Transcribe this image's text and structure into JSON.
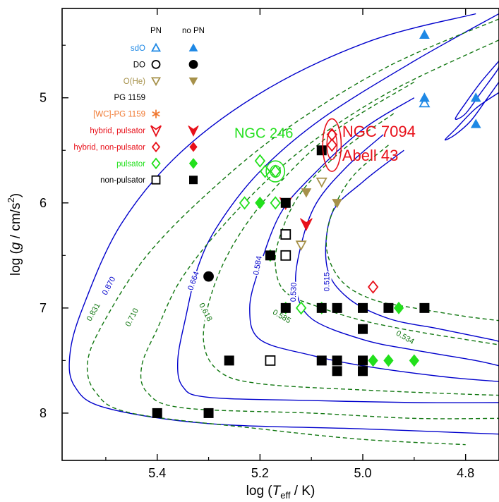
{
  "chart_data": {
    "type": "scatter",
    "xlabel": {
      "pre": "log (",
      "italic": "T",
      "sub": "eff",
      "post": " / K)"
    },
    "ylabel": {
      "pre": "log (",
      "italic": "g",
      "post": " / cm/s",
      "sup": "2",
      "end": ")"
    },
    "xlim": [
      5.585,
      4.735
    ],
    "ylim": [
      4.15,
      8.45
    ],
    "x_axis_reversed": true,
    "y_axis_reversed": true,
    "xticks": [
      5.4,
      5.2,
      5.0,
      4.8
    ],
    "xtick_labels": [
      "5.4",
      "5.2",
      "5.0",
      "4.8"
    ],
    "yticks": [
      5,
      6,
      7,
      8
    ],
    "ytick_labels": [
      "5",
      "6",
      "7",
      "8"
    ],
    "grid": false,
    "legend_placement": "top-left",
    "legend": {
      "col_headers": [
        "PN",
        "no PN"
      ],
      "rows": [
        {
          "label": "sdO",
          "color": "#1e88e5",
          "marker": "triangle-up"
        },
        {
          "label": "DO",
          "color": "#000000",
          "marker": "circle"
        },
        {
          "label": "O(He)",
          "color": "#a6914a",
          "marker": "triangle-down"
        },
        {
          "label": "PG 1159",
          "color": "#000000",
          "marker": "none"
        },
        {
          "label": "[WC]-PG 1159",
          "color": "#f07830",
          "marker": "asterisk"
        },
        {
          "label": "hybrid,        pulsator",
          "color": "#e8101a",
          "marker": "arrow"
        },
        {
          "label": "hybrid, non-pulsator",
          "color": "#e8101a",
          "marker": "diamond"
        },
        {
          "label": "pulsator",
          "color": "#22e01c",
          "marker": "diamond"
        },
        {
          "label": "non-pulsator",
          "color": "#000000",
          "marker": "square"
        }
      ]
    },
    "tracks_solid": [
      {
        "label": "0.870",
        "color": "#0000cc",
        "points": [
          [
            4.78,
            4.2
          ],
          [
            4.98,
            4.45
          ],
          [
            5.18,
            4.9
          ],
          [
            5.35,
            5.5
          ],
          [
            5.47,
            6.2
          ],
          [
            5.545,
            7.0
          ],
          [
            5.57,
            7.45
          ],
          [
            5.56,
            7.75
          ],
          [
            5.5,
            7.95
          ],
          [
            5.3,
            8.1
          ],
          [
            5.0,
            8.15
          ],
          [
            4.735,
            8.2
          ]
        ]
      },
      {
        "label": "0.664",
        "color": "#0000cc",
        "points": [
          [
            4.735,
            4.2
          ],
          [
            4.9,
            4.65
          ],
          [
            5.08,
            5.2
          ],
          [
            5.2,
            5.7
          ],
          [
            5.28,
            6.2
          ],
          [
            5.32,
            6.6
          ],
          [
            5.345,
            7.1
          ],
          [
            5.36,
            7.5
          ],
          [
            5.35,
            7.75
          ],
          [
            5.3,
            7.85
          ],
          [
            5.1,
            7.88
          ],
          [
            4.9,
            7.9
          ],
          [
            4.735,
            7.9
          ]
        ]
      },
      {
        "label": "0.584",
        "color": "#0000cc",
        "points": [
          [
            4.9,
            5.0
          ],
          [
            5.0,
            5.3
          ],
          [
            5.1,
            5.75
          ],
          [
            5.16,
            6.1
          ],
          [
            5.2,
            6.6
          ],
          [
            5.22,
            7.0
          ],
          [
            5.2,
            7.3
          ],
          [
            5.1,
            7.45
          ],
          [
            5.0,
            7.55
          ],
          [
            4.85,
            7.65
          ],
          [
            4.735,
            7.7
          ]
        ]
      },
      {
        "label": "0.530",
        "color": "#0000cc",
        "points": [
          [
            4.96,
            5.35
          ],
          [
            5.03,
            5.65
          ],
          [
            5.09,
            6.0
          ],
          [
            5.12,
            6.4
          ],
          [
            5.13,
            6.8
          ],
          [
            5.1,
            7.1
          ],
          [
            5.0,
            7.3
          ],
          [
            4.9,
            7.4
          ],
          [
            4.78,
            7.5
          ],
          [
            4.735,
            7.55
          ]
        ]
      },
      {
        "label": "0.515",
        "color": "#0000cc",
        "points": [
          [
            4.92,
            5.5
          ],
          [
            5.0,
            5.8
          ],
          [
            5.06,
            6.1
          ],
          [
            5.07,
            6.6
          ],
          [
            5.03,
            6.9
          ],
          [
            4.95,
            7.1
          ],
          [
            4.85,
            7.2
          ],
          [
            4.75,
            7.3
          ],
          [
            4.735,
            7.32
          ]
        ]
      },
      {
        "label": "",
        "color": "#0000cc",
        "points": [
          [
            4.735,
            4.65
          ],
          [
            4.77,
            4.85
          ],
          [
            4.8,
            5.05
          ],
          [
            4.82,
            5.2
          ],
          [
            4.8,
            5.15
          ],
          [
            4.77,
            4.95
          ],
          [
            4.74,
            4.75
          ],
          [
            4.735,
            4.7
          ]
        ]
      },
      {
        "label": "",
        "color": "#0000cc",
        "points": [
          [
            4.735,
            4.85
          ],
          [
            4.76,
            5.02
          ],
          [
            4.79,
            5.22
          ],
          [
            4.82,
            5.35
          ],
          [
            4.84,
            5.4
          ],
          [
            4.82,
            5.3
          ],
          [
            4.78,
            5.1
          ],
          [
            4.735,
            4.95
          ]
        ]
      }
    ],
    "tracks_dashed": [
      {
        "label": "0.831",
        "color": "#117711",
        "points": [
          [
            4.735,
            4.25
          ],
          [
            4.95,
            4.7
          ],
          [
            5.15,
            5.3
          ],
          [
            5.3,
            5.9
          ],
          [
            5.42,
            6.5
          ],
          [
            5.5,
            7.1
          ],
          [
            5.535,
            7.5
          ],
          [
            5.52,
            7.8
          ],
          [
            5.45,
            8.0
          ],
          [
            5.2,
            8.15
          ],
          [
            5.0,
            8.25
          ],
          [
            4.8,
            8.3
          ]
        ]
      },
      {
        "label": "0.710",
        "color": "#117711",
        "points": [
          [
            4.735,
            4.45
          ],
          [
            4.95,
            4.95
          ],
          [
            5.12,
            5.5
          ],
          [
            5.25,
            6.1
          ],
          [
            5.35,
            6.7
          ],
          [
            5.4,
            7.2
          ],
          [
            5.43,
            7.55
          ],
          [
            5.42,
            7.8
          ],
          [
            5.35,
            7.95
          ],
          [
            5.1,
            8.0
          ],
          [
            4.9,
            8.05
          ],
          [
            4.735,
            8.05
          ]
        ]
      },
      {
        "label": "0.618",
        "color": "#117711",
        "points": [
          [
            4.9,
            4.85
          ],
          [
            5.05,
            5.3
          ],
          [
            5.16,
            5.8
          ],
          [
            5.24,
            6.3
          ],
          [
            5.29,
            6.8
          ],
          [
            5.31,
            7.3
          ],
          [
            5.28,
            7.6
          ],
          [
            5.2,
            7.72
          ],
          [
            5.0,
            7.78
          ],
          [
            4.8,
            7.82
          ],
          [
            4.735,
            7.83
          ]
        ]
      },
      {
        "label": "0.585",
        "color": "#117711",
        "points": [
          [
            4.94,
            5.15
          ],
          [
            5.04,
            5.5
          ],
          [
            5.12,
            5.9
          ],
          [
            5.16,
            6.3
          ],
          [
            5.17,
            6.6
          ],
          [
            5.15,
            6.85
          ],
          [
            5.08,
            7.0
          ],
          [
            5.0,
            7.12
          ],
          [
            4.9,
            7.22
          ],
          [
            4.8,
            7.3
          ],
          [
            4.735,
            7.35
          ]
        ]
      },
      {
        "label": "0.534",
        "color": "#117711",
        "points": [
          [
            4.95,
            5.45
          ],
          [
            5.02,
            5.75
          ],
          [
            5.06,
            6.1
          ],
          [
            5.07,
            6.45
          ],
          [
            5.04,
            6.75
          ],
          [
            4.98,
            6.92
          ],
          [
            4.9,
            7.0
          ],
          [
            4.8,
            7.08
          ],
          [
            4.735,
            7.12
          ]
        ]
      }
    ],
    "series": [
      {
        "name": "sdO",
        "marker": "triangle-up",
        "color": "#1e88e5",
        "filled": false,
        "points": [
          [
            4.88,
            5.05
          ]
        ]
      },
      {
        "name": "sdO",
        "marker": "triangle-up",
        "color": "#1e88e5",
        "filled": true,
        "points": [
          [
            4.88,
            4.4
          ],
          [
            4.88,
            5.0
          ],
          [
            4.78,
            5.0
          ],
          [
            4.78,
            5.25
          ]
        ]
      },
      {
        "name": "DO",
        "marker": "circle",
        "color": "#000000",
        "filled": true,
        "points": [
          [
            5.3,
            6.7
          ]
        ]
      },
      {
        "name": "O(He)",
        "marker": "triangle-down",
        "color": "#a6914a",
        "filled": false,
        "points": [
          [
            5.08,
            5.8
          ],
          [
            5.12,
            6.4
          ]
        ]
      },
      {
        "name": "O(He)",
        "marker": "triangle-down",
        "color": "#a6914a",
        "filled": true,
        "points": [
          [
            5.11,
            5.9
          ],
          [
            5.05,
            6.0
          ]
        ]
      },
      {
        "name": "hybrid, pulsator",
        "marker": "arrow",
        "color": "#e8101a",
        "filled": true,
        "points": [
          [
            5.11,
            6.2
          ],
          [
            5.15,
            6.0
          ]
        ]
      },
      {
        "name": "hybrid, non-pulsator",
        "marker": "diamond",
        "color": "#e8101a",
        "filled": false,
        "points": [
          [
            4.98,
            6.8
          ],
          [
            5.06,
            5.35
          ],
          [
            5.06,
            5.45
          ]
        ]
      },
      {
        "name": "pulsator",
        "marker": "diamond",
        "color": "#22e01c",
        "filled": false,
        "points": [
          [
            5.2,
            5.6
          ],
          [
            5.19,
            5.7
          ],
          [
            5.17,
            5.7
          ],
          [
            5.23,
            6.0
          ],
          [
            5.17,
            6.0
          ],
          [
            5.12,
            7.0
          ]
        ]
      },
      {
        "name": "pulsator",
        "marker": "diamond",
        "color": "#22e01c",
        "filled": true,
        "points": [
          [
            5.2,
            6.0
          ],
          [
            5.18,
            6.5
          ],
          [
            5.15,
            7.0
          ],
          [
            5.08,
            7.0
          ],
          [
            4.93,
            7.0
          ],
          [
            4.98,
            7.5
          ],
          [
            4.95,
            7.5
          ],
          [
            4.9,
            7.5
          ]
        ]
      },
      {
        "name": "non-pulsator",
        "marker": "square",
        "color": "#000000",
        "filled": false,
        "points": [
          [
            5.15,
            6.3
          ],
          [
            5.15,
            6.5
          ],
          [
            5.18,
            7.5
          ]
        ]
      },
      {
        "name": "non-pulsator",
        "marker": "square",
        "color": "#000000",
        "filled": true,
        "points": [
          [
            5.08,
            5.5
          ],
          [
            5.15,
            6.0
          ],
          [
            5.18,
            6.5
          ],
          [
            5.15,
            7.0
          ],
          [
            5.08,
            7.0
          ],
          [
            5.05,
            7.0
          ],
          [
            5.0,
            7.0
          ],
          [
            4.95,
            7.0
          ],
          [
            4.88,
            7.0
          ],
          [
            5.0,
            7.2
          ],
          [
            5.26,
            7.5
          ],
          [
            5.08,
            7.5
          ],
          [
            5.05,
            7.5
          ],
          [
            5.05,
            7.6
          ],
          [
            5.0,
            7.5
          ],
          [
            5.0,
            7.6
          ],
          [
            5.4,
            8.0
          ],
          [
            5.3,
            8.0
          ]
        ]
      }
    ],
    "annotations": [
      {
        "text": "NGC 246",
        "color": "#22e01c",
        "x": 5.25,
        "y": 5.38,
        "size": 20
      },
      {
        "text": "NGC 7094",
        "color": "#e8101a",
        "x": 5.04,
        "y": 5.37,
        "size": 22
      },
      {
        "text": "Abell 43",
        "color": "#e8101a",
        "x": 5.04,
        "y": 5.6,
        "size": 22
      }
    ],
    "ellipses": [
      {
        "color": "#22e01c",
        "x": 5.17,
        "y": 5.7,
        "rx_data": 0.018,
        "ry_data": 0.1
      },
      {
        "color": "#e8101a",
        "x": 5.06,
        "y": 5.45,
        "rx_data": 0.018,
        "ry_data": 0.25
      }
    ]
  }
}
